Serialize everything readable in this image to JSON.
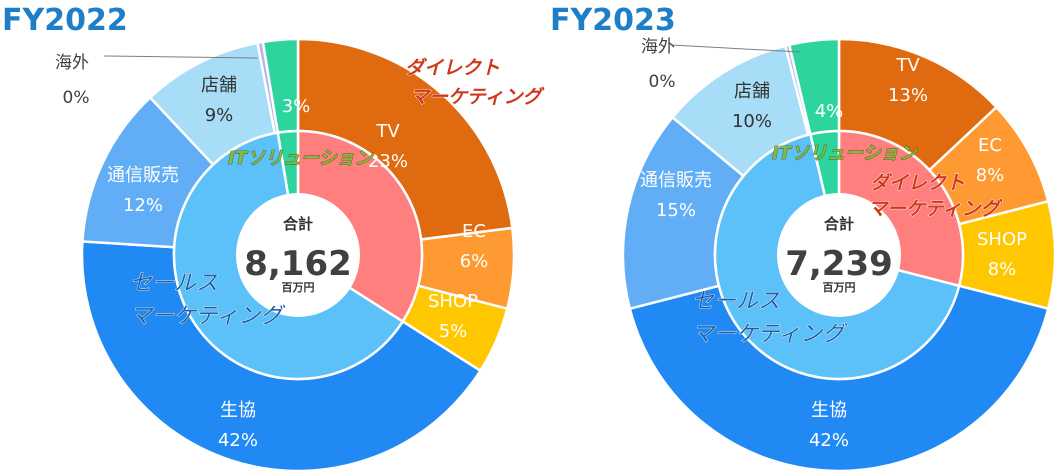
{
  "chart_data": [
    {
      "type": "pie",
      "title": "FY2022",
      "center": {
        "label": "合計",
        "value": "8,162",
        "unit": "百万円"
      },
      "outer": [
        {
          "name": "TV",
          "value": 23,
          "label": "23%",
          "color": "#E06A10"
        },
        {
          "name": "EC",
          "value": 6,
          "label": "6%",
          "color": "#FF9A33"
        },
        {
          "name": "SHOP",
          "value": 5,
          "label": "5%",
          "color": "#FFC700"
        },
        {
          "name": "生協",
          "value": 42,
          "label": "42%",
          "color": "#2189F3"
        },
        {
          "name": "通信販売",
          "value": 12,
          "label": "12%",
          "color": "#62AEF6"
        },
        {
          "name": "店舗",
          "value": 9,
          "label": "9%",
          "color": "#A7DDF7"
        },
        {
          "name": "海外",
          "value": 0.4,
          "label": "0%",
          "color": "#B7B2EC"
        },
        {
          "name": "",
          "value": 2.6,
          "label": "3%",
          "color": "#2DD49D"
        }
      ],
      "inner": [
        {
          "name": "ダイレクト マーケティング",
          "value": 34,
          "color": "#FF7E7E"
        },
        {
          "name": "セールス マーケティング",
          "value": 63.4,
          "color": "#5CC1F8"
        },
        {
          "name": "ITソリューション",
          "value": 2.6,
          "color": "#2DD49D"
        }
      ],
      "category_labels": {
        "direct": [
          "ダイレクト",
          "マーケティング"
        ],
        "sales": [
          "セールス",
          "マーケティング"
        ],
        "it": "ITソリューション"
      }
    },
    {
      "type": "pie",
      "title": "FY2023",
      "center": {
        "label": "合計",
        "value": "7,239",
        "unit": "百万円"
      },
      "outer": [
        {
          "name": "TV",
          "value": 13,
          "label": "13%",
          "color": "#E06A10"
        },
        {
          "name": "EC",
          "value": 8,
          "label": "8%",
          "color": "#FF9A33"
        },
        {
          "name": "SHOP",
          "value": 8,
          "label": "8%",
          "color": "#FFC700"
        },
        {
          "name": "生協",
          "value": 42,
          "label": "42%",
          "color": "#2189F3"
        },
        {
          "name": "通信販売",
          "value": 15,
          "label": "15%",
          "color": "#62AEF6"
        },
        {
          "name": "店舗",
          "value": 10,
          "label": "10%",
          "color": "#A7DDF7"
        },
        {
          "name": "海外",
          "value": 0.3,
          "label": "0%",
          "color": "#B7B2EC"
        },
        {
          "name": "",
          "value": 3.7,
          "label": "4%",
          "color": "#2DD49D"
        }
      ],
      "inner": [
        {
          "name": "ダイレクト マーケティング",
          "value": 29,
          "color": "#FF7E7E"
        },
        {
          "name": "セールス マーケティング",
          "value": 67.3,
          "color": "#5CC1F8"
        },
        {
          "name": "ITソリューション",
          "value": 3.7,
          "color": "#2DD49D"
        }
      ],
      "category_labels": {
        "direct": [
          "ダイレクト",
          "マーケティング"
        ],
        "sales": [
          "セールス",
          "マーケティング"
        ],
        "it": "ITソリューション"
      }
    }
  ]
}
